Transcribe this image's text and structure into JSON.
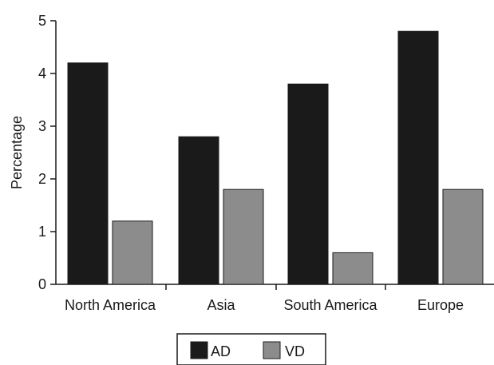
{
  "chart_data": {
    "type": "bar",
    "title": "",
    "xlabel": "",
    "ylabel": "Percentage",
    "ylim": [
      0,
      5
    ],
    "yticks": [
      0,
      1,
      2,
      3,
      4,
      5
    ],
    "categories": [
      "North America",
      "Asia",
      "South America",
      "Europe"
    ],
    "series": [
      {
        "name": "AD",
        "color": "#1a1a1a",
        "values": [
          4.2,
          2.8,
          3.8,
          4.8
        ]
      },
      {
        "name": "VD",
        "color": "#8c8c8c",
        "values": [
          1.2,
          1.8,
          0.6,
          1.8
        ]
      }
    ],
    "legend": "bottom-center",
    "grid": false
  }
}
